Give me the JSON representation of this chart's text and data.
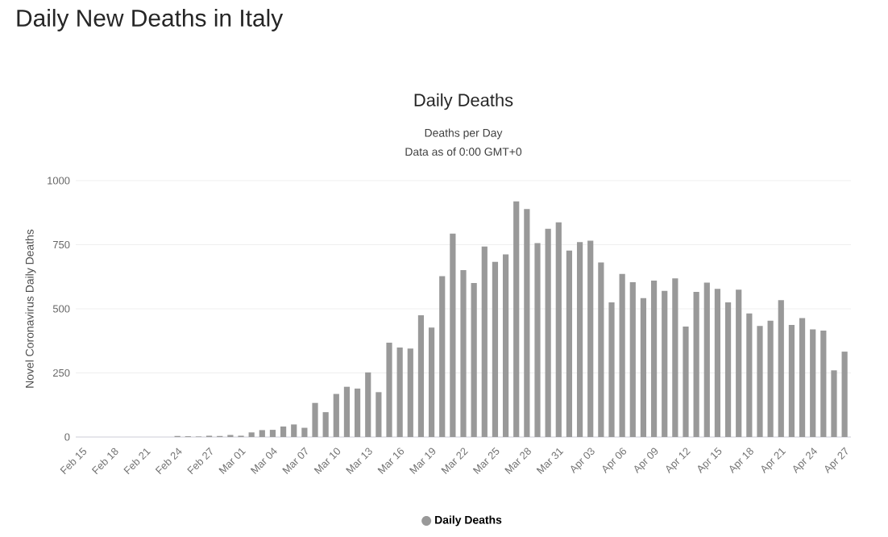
{
  "chart_data": {
    "type": "bar",
    "title": "Daily New Deaths in Italy",
    "subtitle": "Daily Deaths",
    "annotations": [
      "Deaths per Day",
      "Data as of 0:00 GMT+0"
    ],
    "ylabel": "Novel Coronavirus Daily Deaths",
    "categories": [
      "Feb 15",
      null,
      null,
      "Feb 18",
      null,
      null,
      "Feb 21",
      null,
      null,
      "Feb 24",
      null,
      null,
      "Feb 27",
      null,
      null,
      "Mar 01",
      null,
      null,
      "Mar 04",
      null,
      null,
      "Mar 07",
      null,
      null,
      "Mar 10",
      null,
      null,
      "Mar 13",
      null,
      null,
      "Mar 16",
      null,
      null,
      "Mar 19",
      null,
      null,
      "Mar 22",
      null,
      null,
      "Mar 25",
      null,
      null,
      "Mar 28",
      null,
      null,
      "Mar 31",
      null,
      null,
      "Apr 03",
      null,
      null,
      "Apr 06",
      null,
      null,
      "Apr 09",
      null,
      null,
      "Apr 12",
      null,
      null,
      "Apr 15",
      null,
      null,
      "Apr 18",
      null,
      null,
      "Apr 21",
      null,
      null,
      "Apr 24",
      null,
      null,
      "Apr 27"
    ],
    "series": [
      {
        "name": "Daily Deaths",
        "color": "#999999",
        "values": [
          0,
          0,
          0,
          0,
          0,
          0,
          null,
          null,
          null,
          4,
          3,
          2,
          5,
          4,
          8,
          5,
          18,
          27,
          28,
          41,
          49,
          36,
          133,
          97,
          168,
          196,
          189,
          252,
          175,
          368,
          349,
          345,
          475,
          427,
          627,
          793,
          651,
          601,
          743,
          683,
          712,
          919,
          889,
          756,
          812,
          837,
          727,
          760,
          766,
          681,
          525,
          636,
          604,
          542,
          610,
          570,
          619,
          431,
          566,
          602,
          578,
          525,
          575,
          482,
          433,
          454,
          534,
          437,
          464,
          420,
          415,
          260,
          333
        ]
      }
    ],
    "ylim": [
      0,
      1000
    ],
    "yticks": [
      0,
      250,
      500,
      750,
      1000
    ],
    "grid": "y",
    "legend": "bottom"
  }
}
